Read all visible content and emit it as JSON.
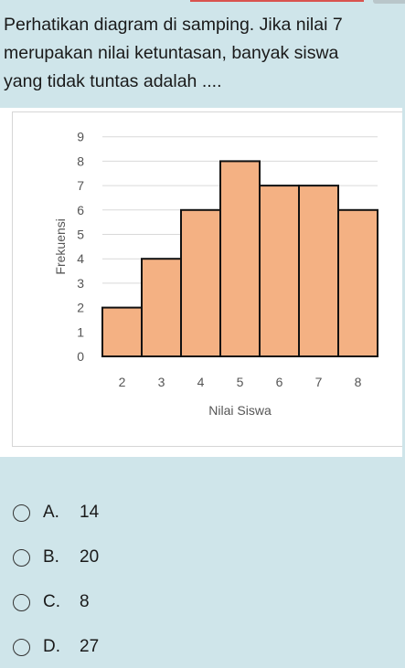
{
  "question": {
    "line1": "Perhatikan diagram di samping. Jika nilai 7",
    "line2": "merupakan nilai ketuntasan, banyak siswa",
    "line3": "yang tidak tuntas adalah ...."
  },
  "chart_data": {
    "type": "bar",
    "categories": [
      "2",
      "3",
      "4",
      "5",
      "6",
      "7",
      "8"
    ],
    "values": [
      2,
      4,
      6,
      8,
      7,
      7,
      6
    ],
    "y_ticks": [
      "0",
      "1",
      "2",
      "3",
      "4",
      "5",
      "6",
      "7",
      "8",
      "9"
    ],
    "xlabel": "Nilai Siswa",
    "ylabel": "Frekuensi",
    "ylim": [
      0,
      9
    ],
    "grid": true,
    "colors": {
      "bar_fill": "#f4b183",
      "bar_stroke": "#111111",
      "grid": "#d9d9d9"
    }
  },
  "options": [
    {
      "letter": "A.",
      "value": "14"
    },
    {
      "letter": "B.",
      "value": "20"
    },
    {
      "letter": "C.",
      "value": "8"
    },
    {
      "letter": "D.",
      "value": "27"
    }
  ]
}
